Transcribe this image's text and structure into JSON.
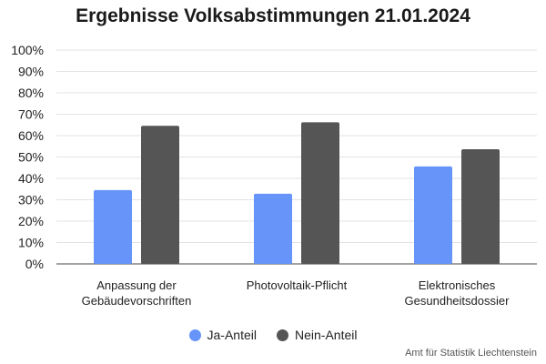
{
  "chart_data": {
    "type": "bar",
    "title": "Ergebnisse Volksabstimmungen 21.01.2024",
    "categories": [
      [
        "Anpassung der",
        "Gebäudevorschriften"
      ],
      [
        "Photovoltaik-Pflicht"
      ],
      [
        "Elektronisches",
        "Gesundheitsdossier"
      ]
    ],
    "series": [
      {
        "name": "Ja-Anteil",
        "color": "#6694f8",
        "values": [
          34.5,
          32.8,
          45.6
        ]
      },
      {
        "name": "Nein-Anteil",
        "color": "#555555",
        "values": [
          64.6,
          66.2,
          53.6
        ]
      }
    ],
    "ylim": [
      0,
      100
    ],
    "yticks": [
      "0%",
      "10%",
      "20%",
      "30%",
      "40%",
      "50%",
      "60%",
      "70%",
      "80%",
      "90%",
      "100%"
    ],
    "grid": true,
    "legend": "bottom-center",
    "source": "Amt für Statistik Liechtenstein"
  }
}
